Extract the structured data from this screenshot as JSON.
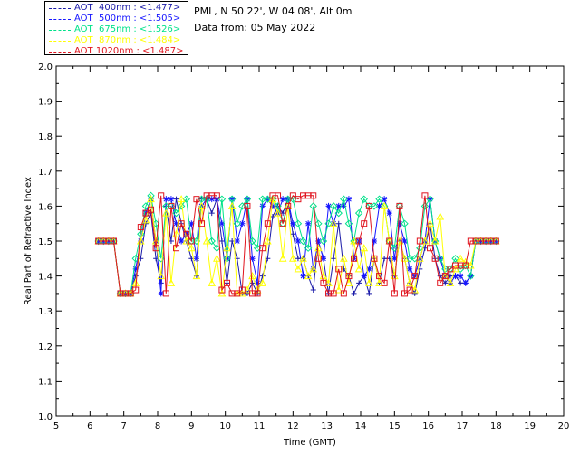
{
  "header": {
    "location": "PML, N 50 22', W 04 08', Alt 0m",
    "date": "Data from: 05 May 2022"
  },
  "legend": [
    {
      "label": "AOT  400nm : <1.477>",
      "color": "#1a1aa8"
    },
    {
      "label": "AOT  500nm : <1.505>",
      "color": "#1515ff"
    },
    {
      "label": "AOT  675nm : <1.526>",
      "color": "#00e28a"
    },
    {
      "label": "AOT  870nm : <1.484>",
      "color": "#ffff00"
    },
    {
      "label": "AOT 1020nm : <1.487>",
      "color": "#e0141e"
    }
  ],
  "chart_data": {
    "type": "line",
    "xlabel": "Time (GMT)",
    "ylabel": "Real Part of Refractive Index",
    "xlim": [
      5,
      20
    ],
    "ylim": [
      1.0,
      2.0
    ],
    "x_ticks": [
      "5",
      "6",
      "7",
      "8",
      "9",
      "10",
      "11",
      "12",
      "13",
      "14",
      "15",
      "16",
      "17",
      "18",
      "19",
      "20"
    ],
    "y_ticks": [
      "1.0",
      "1.1",
      "1.2",
      "1.3",
      "1.4",
      "1.5",
      "1.6",
      "1.7",
      "1.8",
      "1.9",
      "2.0"
    ],
    "series": [
      {
        "name": "AOT 400nm",
        "color": "#1a1aa8",
        "marker": "plus",
        "x": [
          6.25,
          6.4,
          6.55,
          6.7,
          6.9,
          7.05,
          7.2,
          7.35,
          7.5,
          7.65,
          7.8,
          7.95,
          8.1,
          8.25,
          8.4,
          8.55,
          8.7,
          8.85,
          9.0,
          9.15,
          9.3,
          9.45,
          9.6,
          9.75,
          9.9,
          10.05,
          10.2,
          10.35,
          10.5,
          10.65,
          10.8,
          10.95,
          11.1,
          11.25,
          11.4,
          11.55,
          11.7,
          11.85,
          12.0,
          12.15,
          12.3,
          12.45,
          12.6,
          12.75,
          12.9,
          13.05,
          13.2,
          13.35,
          13.5,
          13.65,
          13.8,
          13.95,
          14.1,
          14.25,
          14.4,
          14.55,
          14.7,
          14.85,
          15.0,
          15.15,
          15.3,
          15.45,
          15.6,
          15.75,
          15.9,
          16.05,
          16.2,
          16.35,
          16.5,
          16.65,
          16.8,
          16.95,
          17.1,
          17.25,
          17.4,
          17.55,
          17.7,
          17.85,
          18.0
        ],
        "y": [
          1.5,
          1.5,
          1.5,
          1.5,
          1.35,
          1.35,
          1.35,
          1.4,
          1.45,
          1.55,
          1.58,
          1.45,
          1.38,
          1.6,
          1.5,
          1.62,
          1.55,
          1.5,
          1.45,
          1.4,
          1.62,
          1.62,
          1.58,
          1.62,
          1.5,
          1.38,
          1.5,
          1.45,
          1.35,
          1.35,
          1.38,
          1.35,
          1.4,
          1.45,
          1.57,
          1.6,
          1.58,
          1.62,
          1.52,
          1.45,
          1.45,
          1.4,
          1.36,
          1.5,
          1.45,
          1.35,
          1.45,
          1.55,
          1.42,
          1.4,
          1.35,
          1.38,
          1.4,
          1.35,
          1.45,
          1.38,
          1.45,
          1.45,
          1.4,
          1.5,
          1.45,
          1.38,
          1.35,
          1.42,
          1.48,
          1.55,
          1.45,
          1.4,
          1.38,
          1.4,
          1.4,
          1.38,
          1.38,
          1.4,
          1.5,
          1.5,
          1.5,
          1.5,
          1.5
        ]
      },
      {
        "name": "AOT 500nm",
        "color": "#1515ff",
        "marker": "asterisk",
        "x": [
          6.25,
          6.4,
          6.55,
          6.7,
          6.9,
          7.05,
          7.2,
          7.35,
          7.5,
          7.65,
          7.8,
          7.95,
          8.1,
          8.25,
          8.4,
          8.55,
          8.7,
          8.85,
          9.0,
          9.15,
          9.3,
          9.45,
          9.6,
          9.75,
          9.9,
          10.05,
          10.2,
          10.35,
          10.5,
          10.65,
          10.8,
          10.95,
          11.1,
          11.25,
          11.4,
          11.55,
          11.7,
          11.85,
          12.0,
          12.15,
          12.3,
          12.45,
          12.6,
          12.75,
          12.9,
          13.05,
          13.2,
          13.35,
          13.5,
          13.65,
          13.8,
          13.95,
          14.1,
          14.25,
          14.4,
          14.55,
          14.7,
          14.85,
          15.0,
          15.15,
          15.3,
          15.45,
          15.6,
          15.75,
          15.9,
          16.05,
          16.2,
          16.35,
          16.5,
          16.65,
          16.8,
          16.95,
          17.1,
          17.25,
          17.4,
          17.55,
          17.7,
          17.85,
          18.0
        ],
        "y": [
          1.5,
          1.5,
          1.5,
          1.5,
          1.35,
          1.35,
          1.35,
          1.42,
          1.5,
          1.58,
          1.62,
          1.5,
          1.35,
          1.62,
          1.62,
          1.55,
          1.5,
          1.52,
          1.55,
          1.45,
          1.6,
          1.62,
          1.62,
          1.62,
          1.55,
          1.45,
          1.62,
          1.5,
          1.55,
          1.62,
          1.45,
          1.38,
          1.6,
          1.62,
          1.6,
          1.58,
          1.62,
          1.62,
          1.55,
          1.5,
          1.4,
          1.55,
          1.42,
          1.5,
          1.45,
          1.6,
          1.55,
          1.6,
          1.6,
          1.62,
          1.45,
          1.5,
          1.4,
          1.42,
          1.5,
          1.6,
          1.62,
          1.58,
          1.45,
          1.55,
          1.5,
          1.42,
          1.4,
          1.45,
          1.5,
          1.62,
          1.5,
          1.45,
          1.4,
          1.38,
          1.4,
          1.4,
          1.38,
          1.4,
          1.5,
          1.5,
          1.5,
          1.5,
          1.5
        ]
      },
      {
        "name": "AOT 675nm",
        "color": "#00e28a",
        "marker": "diamond",
        "x": [
          6.25,
          6.4,
          6.55,
          6.7,
          6.9,
          7.05,
          7.2,
          7.35,
          7.5,
          7.65,
          7.8,
          7.95,
          8.1,
          8.25,
          8.4,
          8.55,
          8.7,
          8.85,
          9.0,
          9.15,
          9.3,
          9.45,
          9.6,
          9.75,
          9.9,
          10.05,
          10.2,
          10.35,
          10.5,
          10.65,
          10.8,
          10.95,
          11.1,
          11.25,
          11.4,
          11.55,
          11.7,
          11.85,
          12.0,
          12.15,
          12.3,
          12.45,
          12.6,
          12.75,
          12.9,
          13.05,
          13.2,
          13.35,
          13.5,
          13.65,
          13.8,
          13.95,
          14.1,
          14.25,
          14.4,
          14.55,
          14.7,
          14.85,
          15.0,
          15.15,
          15.3,
          15.45,
          15.6,
          15.75,
          15.9,
          16.05,
          16.2,
          16.35,
          16.5,
          16.65,
          16.8,
          16.95,
          17.1,
          17.25,
          17.4,
          17.55,
          17.7,
          17.85,
          18.0
        ],
        "y": [
          1.5,
          1.5,
          1.5,
          1.5,
          1.35,
          1.35,
          1.35,
          1.45,
          1.52,
          1.6,
          1.63,
          1.55,
          1.45,
          1.6,
          1.6,
          1.58,
          1.6,
          1.62,
          1.5,
          1.5,
          1.62,
          1.62,
          1.5,
          1.48,
          1.62,
          1.45,
          1.62,
          1.55,
          1.6,
          1.62,
          1.5,
          1.48,
          1.62,
          1.62,
          1.62,
          1.6,
          1.55,
          1.62,
          1.62,
          1.55,
          1.5,
          1.48,
          1.6,
          1.55,
          1.5,
          1.55,
          1.6,
          1.58,
          1.62,
          1.55,
          1.5,
          1.58,
          1.62,
          1.6,
          1.6,
          1.62,
          1.6,
          1.5,
          1.48,
          1.6,
          1.55,
          1.45,
          1.45,
          1.48,
          1.6,
          1.62,
          1.5,
          1.45,
          1.42,
          1.42,
          1.45,
          1.42,
          1.43,
          1.4,
          1.5,
          1.5,
          1.5,
          1.5,
          1.5
        ]
      },
      {
        "name": "AOT 870nm",
        "color": "#ffff00",
        "marker": "triangle",
        "x": [
          6.25,
          6.4,
          6.55,
          6.7,
          6.9,
          7.05,
          7.2,
          7.35,
          7.5,
          7.65,
          7.8,
          7.95,
          8.1,
          8.25,
          8.4,
          8.55,
          8.7,
          8.85,
          9.0,
          9.15,
          9.3,
          9.45,
          9.6,
          9.75,
          9.9,
          10.05,
          10.2,
          10.35,
          10.5,
          10.65,
          10.8,
          10.95,
          11.1,
          11.25,
          11.4,
          11.55,
          11.7,
          11.85,
          12.0,
          12.15,
          12.3,
          12.45,
          12.6,
          12.75,
          12.9,
          13.05,
          13.2,
          13.35,
          13.5,
          13.65,
          13.8,
          13.95,
          14.1,
          14.25,
          14.4,
          14.55,
          14.7,
          14.85,
          15.0,
          15.15,
          15.3,
          15.45,
          15.6,
          15.75,
          15.9,
          16.05,
          16.2,
          16.35,
          16.5,
          16.65,
          16.8,
          16.95,
          17.1,
          17.25,
          17.4,
          17.55,
          17.7,
          17.85,
          18.0
        ],
        "y": [
          1.5,
          1.5,
          1.5,
          1.5,
          1.35,
          1.35,
          1.35,
          1.38,
          1.5,
          1.56,
          1.62,
          1.5,
          1.4,
          1.58,
          1.38,
          1.52,
          1.62,
          1.5,
          1.48,
          1.4,
          1.6,
          1.5,
          1.38,
          1.45,
          1.35,
          1.48,
          1.6,
          1.35,
          1.35,
          1.36,
          1.4,
          1.36,
          1.38,
          1.5,
          1.62,
          1.58,
          1.45,
          1.6,
          1.45,
          1.42,
          1.45,
          1.4,
          1.42,
          1.48,
          1.4,
          1.38,
          1.55,
          1.36,
          1.45,
          1.38,
          1.5,
          1.42,
          1.48,
          1.38,
          1.45,
          1.38,
          1.6,
          1.5,
          1.4,
          1.5,
          1.45,
          1.38,
          1.36,
          1.45,
          1.5,
          1.55,
          1.5,
          1.57,
          1.4,
          1.38,
          1.42,
          1.45,
          1.44,
          1.43,
          1.5,
          1.5,
          1.5,
          1.5,
          1.5
        ]
      },
      {
        "name": "AOT 1020nm",
        "color": "#e0141e",
        "marker": "square",
        "x": [
          6.25,
          6.4,
          6.55,
          6.7,
          6.9,
          7.05,
          7.2,
          7.35,
          7.5,
          7.65,
          7.8,
          7.95,
          8.1,
          8.25,
          8.4,
          8.55,
          8.7,
          8.85,
          9.0,
          9.15,
          9.3,
          9.45,
          9.6,
          9.75,
          9.9,
          10.05,
          10.2,
          10.35,
          10.5,
          10.65,
          10.8,
          10.95,
          11.1,
          11.25,
          11.4,
          11.55,
          11.7,
          11.85,
          12.0,
          12.15,
          12.3,
          12.45,
          12.6,
          12.75,
          12.9,
          13.05,
          13.2,
          13.35,
          13.5,
          13.65,
          13.8,
          13.95,
          14.1,
          14.25,
          14.4,
          14.55,
          14.7,
          14.85,
          15.0,
          15.15,
          15.3,
          15.45,
          15.6,
          15.75,
          15.9,
          16.05,
          16.2,
          16.35,
          16.5,
          16.65,
          16.8,
          16.95,
          17.1,
          17.25,
          17.4,
          17.55,
          17.7,
          17.85,
          18.0
        ],
        "y": [
          1.5,
          1.5,
          1.5,
          1.5,
          1.35,
          1.35,
          1.35,
          1.36,
          1.54,
          1.58,
          1.59,
          1.48,
          1.63,
          1.35,
          1.6,
          1.48,
          1.55,
          1.52,
          1.5,
          1.62,
          1.55,
          1.63,
          1.63,
          1.63,
          1.36,
          1.38,
          1.35,
          1.35,
          1.36,
          1.6,
          1.35,
          1.35,
          1.48,
          1.55,
          1.63,
          1.63,
          1.55,
          1.6,
          1.63,
          1.62,
          1.63,
          1.63,
          1.63,
          1.45,
          1.38,
          1.35,
          1.35,
          1.42,
          1.35,
          1.4,
          1.45,
          1.5,
          1.55,
          1.6,
          1.45,
          1.4,
          1.38,
          1.5,
          1.35,
          1.6,
          1.35,
          1.36,
          1.4,
          1.5,
          1.63,
          1.48,
          1.45,
          1.38,
          1.4,
          1.42,
          1.43,
          1.43,
          1.43,
          1.5,
          1.5,
          1.5,
          1.5,
          1.5,
          1.5
        ]
      }
    ]
  }
}
